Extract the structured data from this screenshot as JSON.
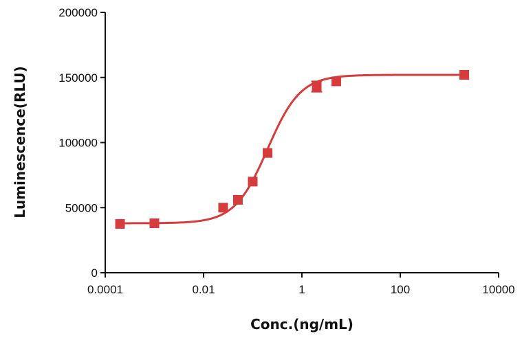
{
  "chart_data": {
    "type": "scatter",
    "title": "",
    "xlabel": "Conc.(ng/mL)",
    "ylabel": "Luminescence(RLU)",
    "x_scale": "log10",
    "xlim": [
      0.0001,
      10000
    ],
    "ylim": [
      0,
      200000
    ],
    "x_ticks": [
      0.0001,
      0.01,
      1,
      100,
      10000
    ],
    "x_tick_labels": [
      "0.0001",
      "0.01",
      "1",
      "100",
      "10000"
    ],
    "y_ticks": [
      0,
      50000,
      100000,
      150000,
      200000
    ],
    "y_tick_labels": [
      "0",
      "50000",
      "100000",
      "150000",
      "200000"
    ],
    "grid": false,
    "color": "#d63c3c",
    "series": [
      {
        "marker": "square",
        "x": [
          0.0002,
          0.001,
          0.025,
          0.05,
          0.1,
          0.2,
          2.0,
          5.0,
          2000
        ],
        "y": [
          37500,
          38000,
          50000,
          56000,
          70000,
          92000,
          143000,
          147000,
          152000
        ],
        "y_err": [
          0,
          0,
          0,
          0,
          0,
          0,
          4000,
          0,
          0
        ],
        "fit": {
          "model": "4PL",
          "bottom": 38000,
          "top": 152000,
          "ec50": 0.2,
          "hill": 1.3
        }
      }
    ]
  }
}
